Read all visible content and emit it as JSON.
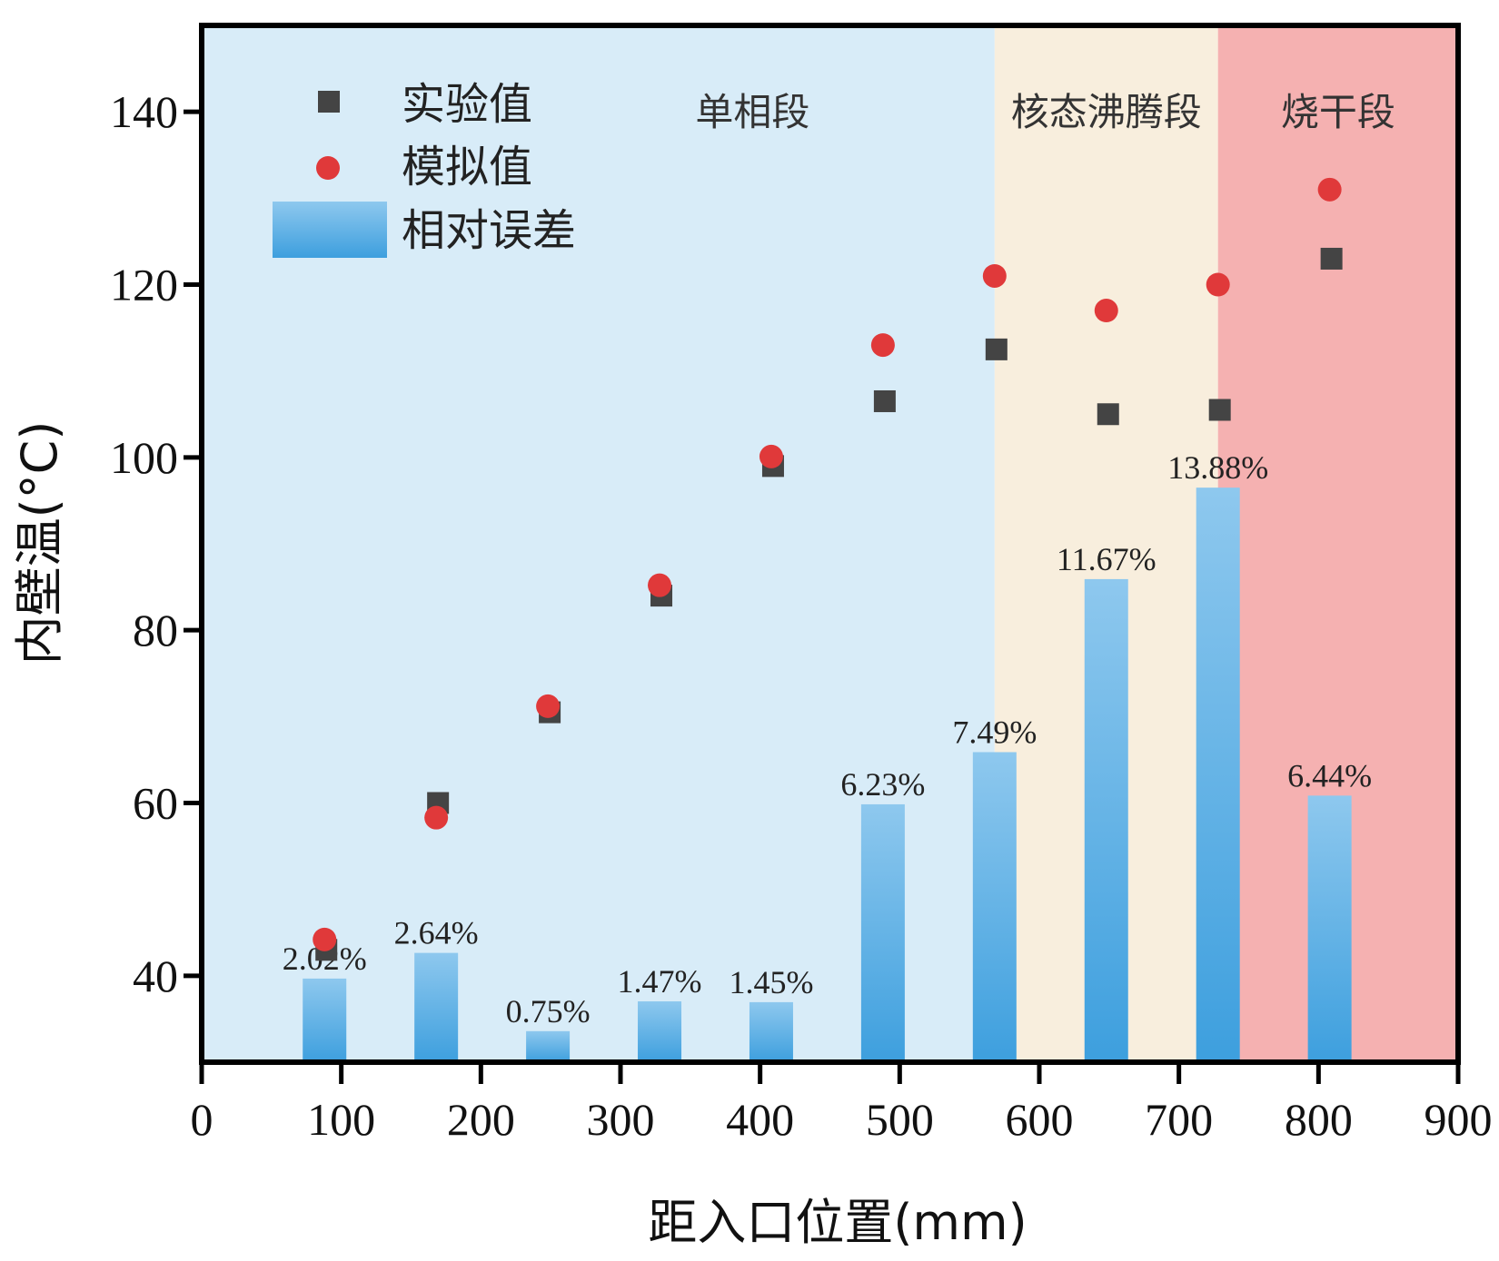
{
  "chart_data": {
    "type": "scatter+bar",
    "xlabel": "距入口位置(mm)",
    "ylabel": "内壁温(°C)",
    "xlim": [
      0,
      900
    ],
    "ylim": [
      30,
      150
    ],
    "x_ticks": [
      0,
      100,
      200,
      300,
      400,
      500,
      600,
      700,
      800,
      900
    ],
    "y_ticks": [
      40,
      60,
      80,
      100,
      120,
      140
    ],
    "regions": [
      {
        "label": "单相段",
        "x_start": 0,
        "x_end": 568,
        "color": "#d8ecf8"
      },
      {
        "label": "核态沸腾段",
        "x_start": 568,
        "x_end": 728,
        "color": "#f8eedd"
      },
      {
        "label": "烧干段",
        "x_start": 728,
        "x_end": 900,
        "color": "#f5b1b1"
      }
    ],
    "legend": [
      {
        "label": "实验值",
        "marker": "square",
        "color": "#444444"
      },
      {
        "label": "模拟值",
        "marker": "circle",
        "color": "#e0393a"
      },
      {
        "label": "相对误差",
        "marker": "bar",
        "color": "#5aaee6"
      }
    ],
    "x": [
      88,
      168,
      248,
      328,
      408,
      488,
      568,
      648,
      728,
      808
    ],
    "series": [
      {
        "name": "实验值",
        "values": [
          43,
          60,
          70.5,
          84,
          99,
          106.5,
          112.5,
          105,
          105.5,
          123
        ]
      },
      {
        "name": "模拟值",
        "values": [
          44.2,
          58.3,
          71.2,
          85.2,
          100.1,
          113,
          121,
          117,
          120,
          131
        ]
      },
      {
        "name": "相对误差",
        "values": [
          2.02,
          2.64,
          0.75,
          1.47,
          1.45,
          6.23,
          7.49,
          11.67,
          13.88,
          6.44
        ],
        "unit": "%",
        "labels": [
          "2.02%",
          "2.64%",
          "0.75%",
          "1.47%",
          "1.45%",
          "6.23%",
          "7.49%",
          "11.67%",
          "13.88%",
          "6.44%"
        ]
      }
    ]
  }
}
